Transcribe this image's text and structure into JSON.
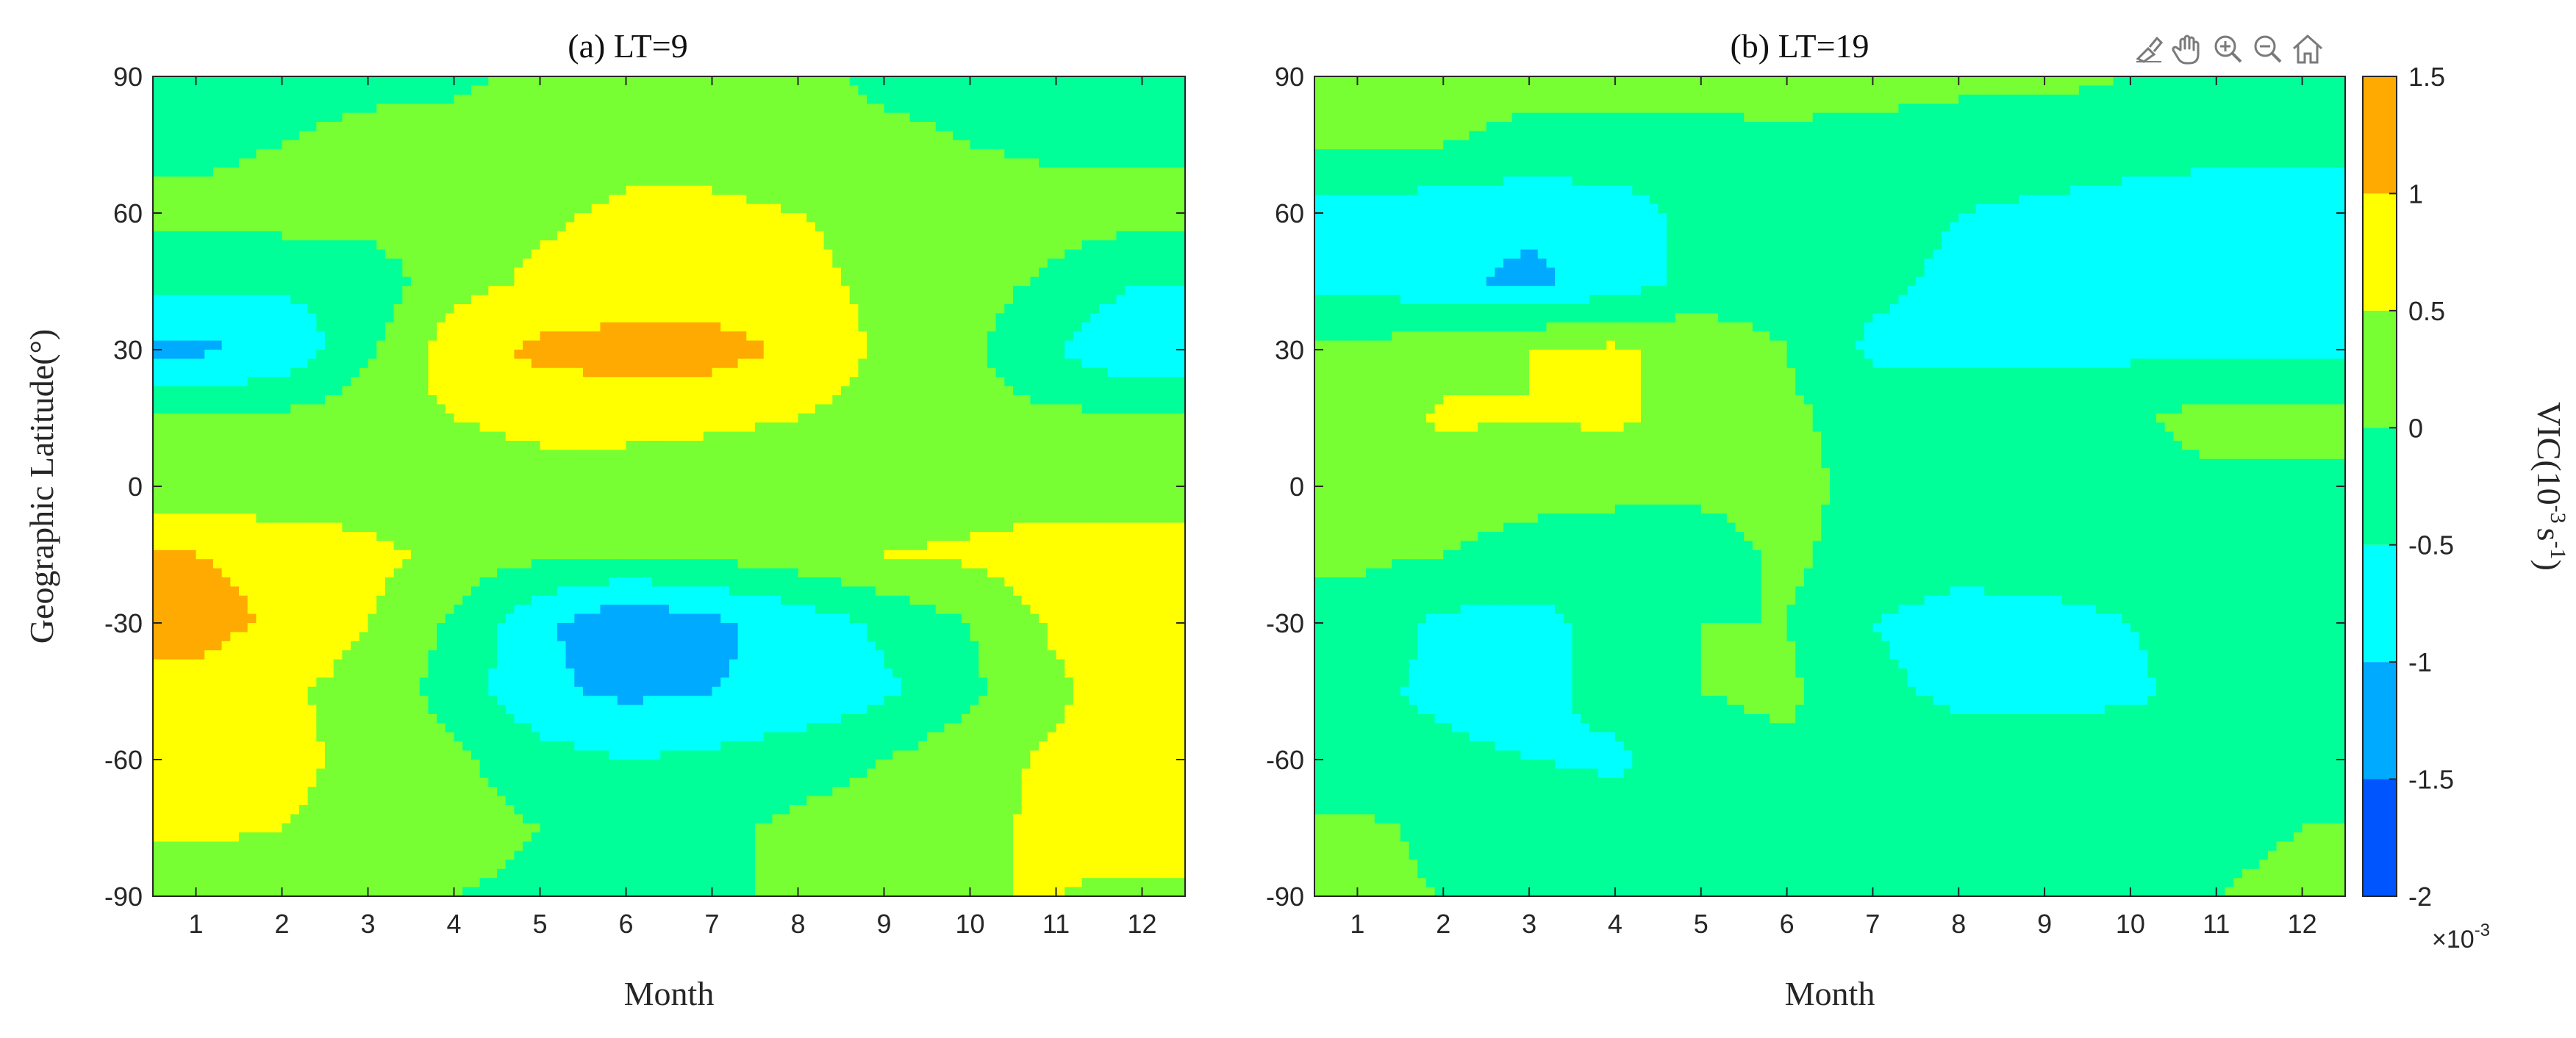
{
  "figure": {
    "y_label": "Geographic Latitude(°)",
    "x_label": "Month",
    "colorbar": {
      "label_main": "VIC(10",
      "label_exp1": "-3",
      "label_mid": "s",
      "label_exp2": "-1",
      "label_end": ")",
      "tick_labels": [
        "1.5",
        "1",
        "0.5",
        "0",
        "-0.5",
        "-1",
        "-1.5",
        "-2"
      ],
      "tick_values": [
        1.5,
        1,
        0.5,
        0,
        -0.5,
        -1,
        -1.5,
        -2
      ],
      "multiplier_prefix": "×10",
      "multiplier_exp": "-3",
      "range": [
        -2,
        1.5
      ],
      "levels": [
        -2,
        -1.5,
        -1,
        -0.5,
        0,
        0.5,
        1,
        1.5
      ],
      "colors": [
        "#0000ff",
        "#0055ff",
        "#00aaff",
        "#00ffff",
        "#00ff99",
        "#77ff33",
        "#ffff00",
        "#ffaa00",
        "#ff5500"
      ]
    },
    "toolbar": {
      "icons": [
        "brush-icon",
        "pan-icon",
        "zoom-in-icon",
        "zoom-out-icon",
        "home-icon"
      ]
    }
  },
  "chart_data": [
    {
      "type": "heatmap",
      "title": "(a) LT=9",
      "xlabel": "Month",
      "ylabel": "Geographic Latitude(°)",
      "xlim": [
        0.5,
        12.5
      ],
      "ylim": [
        -90,
        90
      ],
      "x": [
        1,
        2,
        3,
        4,
        5,
        6,
        7,
        8,
        9,
        10,
        11,
        12
      ],
      "y": [
        -90,
        -75,
        -60,
        -45,
        -30,
        -15,
        0,
        15,
        30,
        45,
        60,
        75,
        90
      ],
      "x_tick_labels": [
        "1",
        "2",
        "3",
        "4",
        "5",
        "6",
        "7",
        "8",
        "9",
        "10",
        "11",
        "12"
      ],
      "y_tick_labels": [
        "90",
        "60",
        "30",
        "0",
        "-30",
        "-60",
        "-90"
      ],
      "y_tick_values": [
        90,
        60,
        30,
        0,
        -30,
        -60,
        -90
      ],
      "z": [
        [
          0.1,
          0.2,
          0.1,
          0.0,
          -0.1,
          -0.2,
          -0.1,
          0.1,
          0.3,
          0.5,
          0.5,
          0.4
        ],
        [
          0.6,
          0.5,
          0.4,
          0.2,
          0.0,
          -0.2,
          -0.1,
          0.1,
          0.2,
          0.4,
          0.6,
          0.7
        ],
        [
          0.9,
          0.6,
          0.4,
          0.1,
          -0.3,
          -0.5,
          -0.4,
          -0.2,
          0.0,
          0.3,
          0.6,
          0.9
        ],
        [
          0.8,
          0.6,
          0.3,
          -0.2,
          -0.9,
          -1.1,
          -1.0,
          -0.9,
          -0.6,
          -0.1,
          0.4,
          0.8
        ],
        [
          1.2,
          0.9,
          0.5,
          -0.1,
          -0.9,
          -1.4,
          -1.1,
          -0.8,
          -0.4,
          0.0,
          0.6,
          0.9
        ],
        [
          1.0,
          0.9,
          0.7,
          0.3,
          0.1,
          0.0,
          0.1,
          0.3,
          0.5,
          0.6,
          0.8,
          0.8
        ],
        [
          0.2,
          0.1,
          0.1,
          0.1,
          0.2,
          0.2,
          0.2,
          0.2,
          0.2,
          0.2,
          0.2,
          0.2
        ],
        [
          0.0,
          0.1,
          0.3,
          0.5,
          0.7,
          0.7,
          0.6,
          0.5,
          0.3,
          0.2,
          0.1,
          0.1
        ],
        [
          -1.1,
          -0.9,
          -0.1,
          0.8,
          1.1,
          1.2,
          1.2,
          0.9,
          0.4,
          0.1,
          -0.5,
          -1.0
        ],
        [
          -0.4,
          -0.4,
          -0.3,
          0.3,
          0.6,
          0.7,
          0.7,
          0.6,
          0.4,
          0.2,
          -0.1,
          -0.5
        ],
        [
          0.1,
          0.2,
          0.2,
          0.3,
          0.4,
          0.6,
          0.6,
          0.5,
          0.4,
          0.3,
          0.2,
          0.2
        ],
        [
          -0.1,
          0.0,
          0.1,
          0.2,
          0.3,
          0.3,
          0.3,
          0.2,
          0.1,
          0.0,
          -0.1,
          -0.1
        ],
        [
          -0.1,
          -0.1,
          -0.1,
          -0.1,
          0.1,
          0.2,
          0.2,
          0.1,
          -0.1,
          -0.1,
          -0.1,
          -0.1
        ]
      ]
    },
    {
      "type": "heatmap",
      "title": "(b) LT=19",
      "xlabel": "Month",
      "ylabel": "",
      "xlim": [
        0.5,
        12.5
      ],
      "ylim": [
        -90,
        90
      ],
      "x": [
        1,
        2,
        3,
        4,
        5,
        6,
        7,
        8,
        9,
        10,
        11,
        12
      ],
      "y": [
        -90,
        -75,
        -60,
        -45,
        -30,
        -15,
        0,
        15,
        30,
        45,
        60,
        75,
        90
      ],
      "x_tick_labels": [
        "1",
        "2",
        "3",
        "4",
        "5",
        "6",
        "7",
        "8",
        "9",
        "10",
        "11",
        "12"
      ],
      "y_tick_labels": [
        "90",
        "60",
        "30",
        "0",
        "-30",
        "-60",
        "-90"
      ],
      "y_tick_values": [
        90,
        60,
        30,
        0,
        -30,
        -60,
        -90
      ],
      "z": [
        [
          0.1,
          0.0,
          -0.1,
          -0.2,
          -0.2,
          -0.2,
          -0.2,
          -0.2,
          -0.3,
          -0.2,
          0.0,
          0.1
        ],
        [
          0.1,
          -0.1,
          -0.1,
          -0.2,
          -0.2,
          -0.2,
          -0.2,
          -0.2,
          -0.2,
          -0.2,
          -0.1,
          0.0
        ],
        [
          -0.3,
          -0.4,
          -0.5,
          -0.6,
          -0.2,
          -0.1,
          -0.3,
          -0.3,
          -0.3,
          -0.2,
          -0.2,
          -0.2
        ],
        [
          -0.4,
          -0.6,
          -0.7,
          -0.3,
          0.0,
          0.1,
          -0.4,
          -0.6,
          -0.6,
          -0.6,
          -0.3,
          -0.2
        ],
        [
          -0.2,
          -0.6,
          -0.7,
          -0.3,
          0.0,
          0.0,
          -0.5,
          -0.7,
          -0.7,
          -0.5,
          -0.2,
          -0.2
        ],
        [
          0.1,
          0.0,
          -0.1,
          -0.2,
          -0.2,
          0.1,
          -0.2,
          -0.3,
          -0.2,
          -0.2,
          -0.2,
          -0.1
        ],
        [
          0.0,
          0.1,
          0.1,
          0.1,
          0.1,
          0.1,
          -0.1,
          -0.2,
          -0.1,
          -0.2,
          -0.1,
          -0.1
        ],
        [
          0.1,
          0.6,
          0.5,
          0.6,
          0.3,
          0.1,
          -0.2,
          -0.2,
          -0.2,
          -0.1,
          0.2,
          0.2
        ],
        [
          0.1,
          0.3,
          0.5,
          0.6,
          0.3,
          0.0,
          -0.6,
          -0.6,
          -0.6,
          -0.6,
          -0.6,
          -0.6
        ],
        [
          -0.6,
          -0.9,
          -1.1,
          -0.8,
          -0.3,
          -0.2,
          -0.4,
          -0.6,
          -0.6,
          -0.6,
          -0.6,
          -0.6
        ],
        [
          -0.7,
          -0.8,
          -0.9,
          -0.8,
          -0.3,
          -0.2,
          -0.3,
          -0.5,
          -0.6,
          -0.7,
          -0.7,
          -0.7
        ],
        [
          0.1,
          0.0,
          -0.1,
          -0.1,
          -0.1,
          -0.1,
          -0.2,
          -0.2,
          -0.2,
          -0.3,
          -0.4,
          -0.4
        ],
        [
          0.2,
          0.2,
          0.1,
          0.1,
          0.1,
          0.2,
          0.2,
          0.1,
          0.1,
          0.0,
          0.0,
          -0.1
        ]
      ]
    }
  ]
}
